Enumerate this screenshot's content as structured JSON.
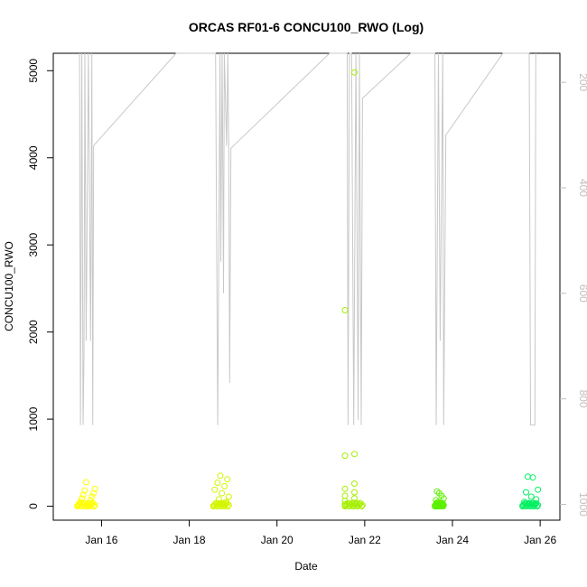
{
  "chart_data": {
    "type": "scatter",
    "title": "ORCAS RF01-6 CONCU100_RWO (Log)",
    "xlabel": "Date",
    "ylabel": "CONCU100_RWO",
    "x_ticks": [
      "Jan 16",
      "Jan 18",
      "Jan 20",
      "Jan 22",
      "Jan 24",
      "Jan 26"
    ],
    "x_tick_days": [
      16,
      18,
      20,
      22,
      24,
      26
    ],
    "xlim": [
      14.9,
      26.45
    ],
    "ylim": [
      -160,
      5200
    ],
    "y_ticks": [
      0,
      1000,
      2000,
      3000,
      4000,
      5000
    ],
    "y2_ticks": [
      200,
      400,
      600,
      800,
      1000
    ],
    "y2lim": [
      1030,
      145
    ],
    "grid": false,
    "series": [
      {
        "color": "#ffff00",
        "clusters": [
          {
            "x_start": 15.45,
            "x_end": 15.85,
            "values": [
              5,
              10,
              20,
              35,
              50,
              70,
              90,
              110,
              130,
              150,
              180,
              200,
              275
            ]
          }
        ]
      },
      {
        "color": "#d4f500",
        "clusters": [
          {
            "x_start": 18.55,
            "x_end": 18.9,
            "values": [
              5,
              15,
              30,
              50,
              80,
              110,
              150,
              190,
              230,
              270,
              310,
              350
            ]
          }
        ]
      },
      {
        "color": "#a6ef00",
        "clusters": [
          {
            "x_start": 21.55,
            "x_end": 21.95,
            "values": [
              5,
              10,
              25,
              40,
              60,
              90,
              120,
              160,
              200,
              260,
              580,
              600,
              2250,
              4980
            ]
          }
        ]
      },
      {
        "color": "#5df000",
        "clusters": [
          {
            "x_start": 23.6,
            "x_end": 23.8,
            "values": [
              5,
              15,
              30,
              50,
              70,
              90,
              120,
              150,
              170
            ]
          }
        ]
      },
      {
        "color": "#00f060",
        "clusters": [
          {
            "x_start": 25.6,
            "x_end": 25.95,
            "values": [
              5,
              15,
              30,
              50,
              80,
              110,
              160,
              190,
              330,
              340
            ]
          }
        ]
      }
    ],
    "line_series": {
      "axis": "right",
      "color": "#c8c8c8",
      "points": [
        [
          15.5,
          145
        ],
        [
          15.52,
          850
        ],
        [
          15.55,
          145
        ],
        [
          15.58,
          850
        ],
        [
          15.6,
          720
        ],
        [
          15.62,
          145
        ],
        [
          15.65,
          690
        ],
        [
          15.7,
          145
        ],
        [
          15.75,
          690
        ],
        [
          15.78,
          145
        ],
        [
          15.8,
          850
        ],
        [
          15.82,
          320
        ],
        [
          17.7,
          145
        ],
        [
          18.6,
          145
        ],
        [
          18.65,
          850
        ],
        [
          18.7,
          145
        ],
        [
          18.72,
          540
        ],
        [
          18.75,
          145
        ],
        [
          18.78,
          600
        ],
        [
          18.8,
          145
        ],
        [
          18.85,
          320
        ],
        [
          18.88,
          145
        ],
        [
          18.9,
          325
        ],
        [
          18.92,
          770
        ],
        [
          18.95,
          325
        ],
        [
          21.2,
          145
        ],
        [
          21.6,
          145
        ],
        [
          21.62,
          850
        ],
        [
          21.65,
          145
        ],
        [
          21.7,
          145
        ],
        [
          21.75,
          850
        ],
        [
          21.8,
          145
        ],
        [
          21.85,
          840
        ],
        [
          21.88,
          145
        ],
        [
          21.92,
          850
        ],
        [
          21.95,
          230
        ],
        [
          23.05,
          145
        ],
        [
          23.6,
          145
        ],
        [
          23.63,
          850
        ],
        [
          23.68,
          145
        ],
        [
          23.72,
          690
        ],
        [
          23.78,
          145
        ],
        [
          23.8,
          850
        ],
        [
          23.85,
          300
        ],
        [
          25.15,
          145
        ],
        [
          25.75,
          145
        ],
        [
          25.78,
          850
        ],
        [
          25.88,
          850
        ],
        [
          25.9,
          145
        ]
      ]
    }
  }
}
